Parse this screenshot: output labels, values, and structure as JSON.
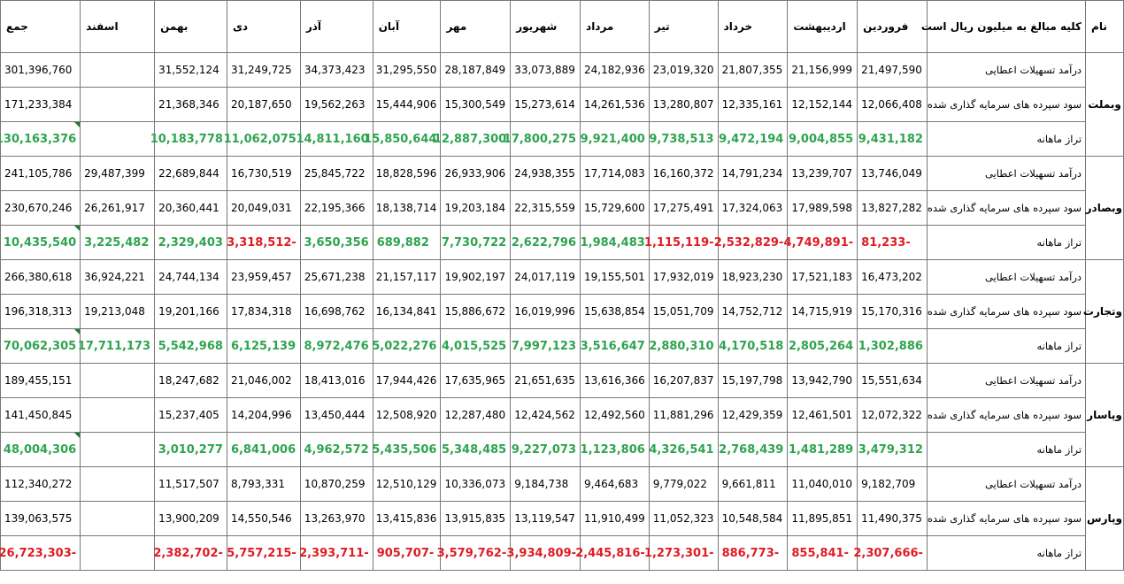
{
  "headers": {
    "name": "نام",
    "desc": "کلیه مبالغ به میلیون ریال است",
    "months": [
      "فروردین",
      "اردیبهشت",
      "خرداد",
      "تیر",
      "مرداد",
      "شهریور",
      "مهر",
      "آبان",
      "آذر",
      "دی",
      "بهمن",
      "اسفند"
    ],
    "total": "جمع"
  },
  "row_labels": {
    "income": "درآمد تسهیلات اعطایی",
    "interest": "سود سپرده های سرمایه گذاری شده",
    "balance": "تراز ماهانه"
  },
  "colors": {
    "positive": "#2ea44f",
    "negative": "#e01b24",
    "marker": "#1e7b32"
  },
  "banks": [
    {
      "name": "وبملت",
      "income": {
        "values": [
          "21,497,590",
          "21,156,999",
          "21,807,355",
          "23,019,320",
          "24,182,936",
          "33,073,889",
          "28,187,849",
          "31,295,550",
          "34,373,423",
          "31,249,725",
          "31,552,124",
          ""
        ],
        "total": "301,396,760"
      },
      "interest": {
        "values": [
          "12,066,408",
          "12,152,144",
          "12,335,161",
          "13,280,807",
          "14,261,536",
          "15,273,614",
          "15,300,549",
          "15,444,906",
          "19,562,263",
          "20,187,650",
          "21,368,346",
          ""
        ],
        "total": "171,233,384"
      },
      "balance": {
        "values": [
          "9,431,182",
          "9,004,855",
          "9,472,194",
          "9,738,513",
          "9,921,400",
          "17,800,275",
          "12,887,300",
          "15,850,644",
          "14,811,160",
          "11,062,075",
          "10,183,778",
          ""
        ],
        "total": "130,163,376"
      }
    },
    {
      "name": "وبصادر",
      "income": {
        "values": [
          "13,746,049",
          "13,239,707",
          "14,791,234",
          "16,160,372",
          "17,714,083",
          "24,938,355",
          "26,933,906",
          "18,828,596",
          "25,845,722",
          "16,730,519",
          "22,689,844",
          "29,487,399"
        ],
        "total": "241,105,786"
      },
      "interest": {
        "values": [
          "13,827,282",
          "17,989,598",
          "17,324,063",
          "17,275,491",
          "15,729,600",
          "22,315,559",
          "19,203,184",
          "18,138,714",
          "22,195,366",
          "20,049,031",
          "20,360,441",
          "26,261,917"
        ],
        "total": "230,670,246"
      },
      "balance": {
        "values": [
          "-81,233",
          "-4,749,891",
          "-2,532,829",
          "-1,115,119",
          "1,984,483",
          "2,622,796",
          "7,730,722",
          "689,882",
          "3,650,356",
          "-3,318,512",
          "2,329,403",
          "3,225,482"
        ],
        "total": "10,435,540"
      }
    },
    {
      "name": "وتجارت",
      "income": {
        "values": [
          "16,473,202",
          "17,521,183",
          "18,923,230",
          "17,932,019",
          "19,155,501",
          "24,017,119",
          "19,902,197",
          "21,157,117",
          "25,671,238",
          "23,959,457",
          "24,744,134",
          "36,924,221"
        ],
        "total": "266,380,618"
      },
      "interest": {
        "values": [
          "15,170,316",
          "14,715,919",
          "14,752,712",
          "15,051,709",
          "15,638,854",
          "16,019,996",
          "15,886,672",
          "16,134,841",
          "16,698,762",
          "17,834,318",
          "19,201,166",
          "19,213,048"
        ],
        "total": "196,318,313"
      },
      "balance": {
        "values": [
          "1,302,886",
          "2,805,264",
          "4,170,518",
          "2,880,310",
          "3,516,647",
          "7,997,123",
          "4,015,525",
          "5,022,276",
          "8,972,476",
          "6,125,139",
          "5,542,968",
          "17,711,173"
        ],
        "total": "70,062,305"
      }
    },
    {
      "name": "وپاسار",
      "income": {
        "values": [
          "15,551,634",
          "13,942,790",
          "15,197,798",
          "16,207,837",
          "13,616,366",
          "21,651,635",
          "17,635,965",
          "17,944,426",
          "18,413,016",
          "21,046,002",
          "18,247,682",
          ""
        ],
        "total": "189,455,151"
      },
      "interest": {
        "values": [
          "12,072,322",
          "12,461,501",
          "12,429,359",
          "11,881,296",
          "12,492,560",
          "12,424,562",
          "12,287,480",
          "12,508,920",
          "13,450,444",
          "14,204,996",
          "15,237,405",
          ""
        ],
        "total": "141,450,845"
      },
      "balance": {
        "values": [
          "3,479,312",
          "1,481,289",
          "2,768,439",
          "4,326,541",
          "1,123,806",
          "9,227,073",
          "5,348,485",
          "5,435,506",
          "4,962,572",
          "6,841,006",
          "3,010,277",
          ""
        ],
        "total": "48,004,306"
      }
    },
    {
      "name": "وپارس",
      "income": {
        "values": [
          "9,182,709",
          "11,040,010",
          "9,661,811",
          "9,779,022",
          "9,464,683",
          "9,184,738",
          "10,336,073",
          "12,510,129",
          "10,870,259",
          "8,793,331",
          "11,517,507",
          ""
        ],
        "total": "112,340,272"
      },
      "interest": {
        "values": [
          "11,490,375",
          "11,895,851",
          "10,548,584",
          "11,052,323",
          "11,910,499",
          "13,119,547",
          "13,915,835",
          "13,415,836",
          "13,263,970",
          "14,550,546",
          "13,900,209",
          ""
        ],
        "total": "139,063,575"
      },
      "balance": {
        "values": [
          "-2,307,666",
          "-855,841",
          "-886,773",
          "-1,273,301",
          "-2,445,816",
          "-3,934,809",
          "-3,579,762",
          "-905,707",
          "-2,393,711",
          "-5,757,215",
          "-2,382,702",
          ""
        ],
        "total": "-26,723,303"
      }
    }
  ]
}
